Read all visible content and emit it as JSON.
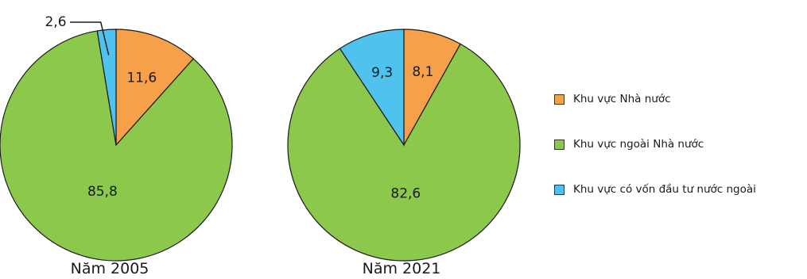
{
  "chart_data": {
    "type": "pie",
    "series_names": [
      "Khu vực Nhà nước",
      "Khu vực ngoài Nhà nước",
      "Khu vực có vốn đầu tư nước ngoài"
    ],
    "colors": [
      "#f7a04a",
      "#8cc84b",
      "#4fc3ee"
    ],
    "pies": [
      {
        "caption": "Năm 2005",
        "values": [
          11.6,
          85.8,
          2.6
        ],
        "labels": [
          "11,6",
          "85,8",
          "2,6"
        ]
      },
      {
        "caption": "Năm 2021",
        "values": [
          8.1,
          82.6,
          9.3
        ],
        "labels": [
          "8,1",
          "82,6",
          "9,3"
        ]
      }
    ],
    "legend_position": "right"
  }
}
